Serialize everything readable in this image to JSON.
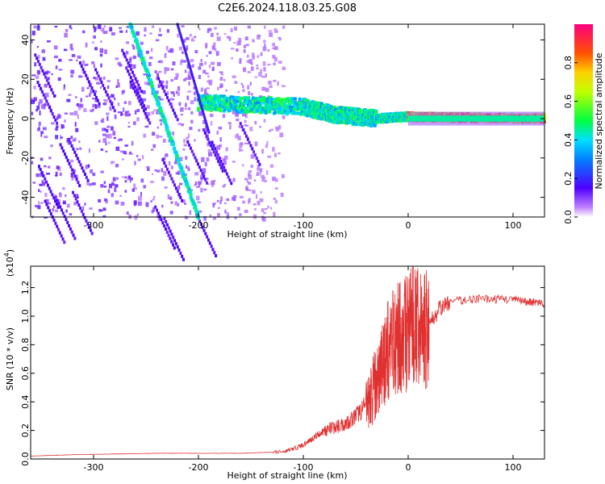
{
  "chart_data": [
    {
      "type": "heatmap",
      "title": "C2E6.2024.118.03.25.G08",
      "xlabel": "Height of straight line (km)",
      "ylabel": "Frequency (Hz)",
      "xlim": [
        -360,
        130
      ],
      "ylim": [
        -50,
        48
      ],
      "x_ticks": [
        -300,
        -200,
        -100,
        0,
        100
      ],
      "y_ticks": [
        -40,
        -20,
        0,
        20,
        40
      ],
      "colorbar": {
        "label": "Normalized spectral amplitude",
        "range": [
          0.0,
          1.0
        ],
        "ticks": [
          0.0,
          0.2,
          0.4,
          0.6,
          0.8
        ]
      },
      "traces": [
        {
          "x": [
            -265,
            -200
          ],
          "y": [
            48,
            -50
          ],
          "amp": 0.5
        },
        {
          "x": [
            -200,
            -100,
            -70,
            -30,
            0,
            50,
            130
          ],
          "y": [
            8,
            6,
            2,
            0,
            1,
            0.5,
            0
          ],
          "amp": 0.75
        }
      ]
    },
    {
      "type": "line",
      "xlabel": "Height of straight line (km)",
      "ylabel": "SNR (10 * v/v)",
      "scale_label": "(x10",
      "scale_exp": "4",
      "xlim": [
        -360,
        130
      ],
      "ylim": [
        0.0,
        1.35
      ],
      "x_ticks": [
        -300,
        -200,
        -100,
        0,
        100
      ],
      "y_ticks": [
        0.0,
        0.2,
        0.4,
        0.6,
        0.8,
        1.0,
        1.2
      ],
      "color": "#e03030",
      "series": [
        {
          "x": [
            -360,
            -320,
            -280,
            -240,
            -200,
            -160,
            -140,
            -120,
            -110,
            -100,
            -90,
            -80,
            -70,
            -60,
            -50,
            -40,
            -35,
            -30,
            -25,
            -20,
            -15,
            -10,
            -5,
            0,
            5,
            10,
            15,
            20,
            30,
            40,
            60,
            80,
            100,
            110,
            120,
            130
          ],
          "values": [
            0.02,
            0.03,
            0.035,
            0.04,
            0.04,
            0.04,
            0.045,
            0.05,
            0.07,
            0.1,
            0.15,
            0.2,
            0.22,
            0.25,
            0.3,
            0.38,
            0.45,
            0.55,
            0.65,
            0.75,
            0.8,
            0.85,
            0.85,
            0.9,
            0.95,
            0.9,
            0.9,
            0.95,
            1.05,
            1.1,
            1.12,
            1.12,
            1.12,
            1.1,
            1.1,
            1.08
          ]
        }
      ]
    }
  ]
}
